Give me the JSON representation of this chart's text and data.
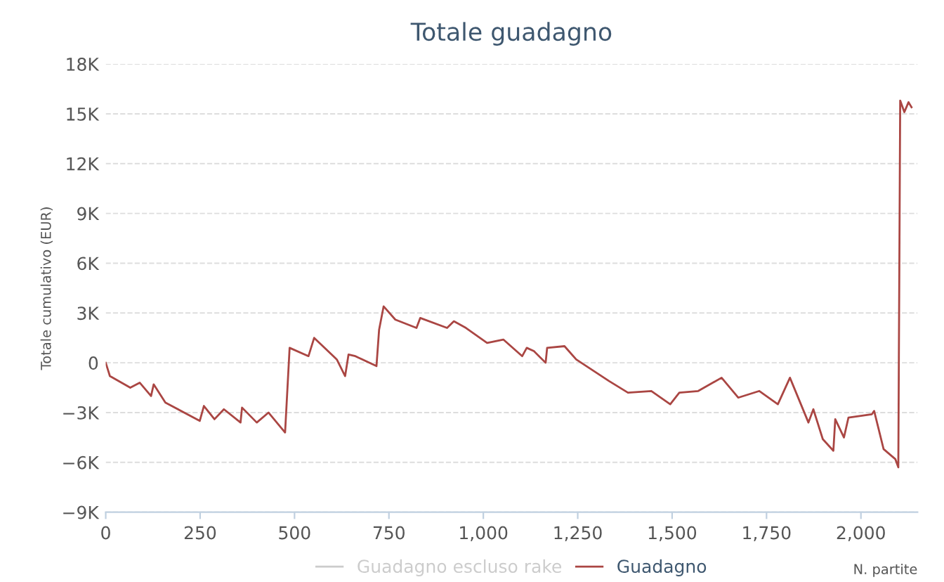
{
  "chart_data": {
    "type": "line",
    "title": "Totale guadagno",
    "xlabel": "N. partite",
    "ylabel": "Totale cumulativo (EUR)",
    "xlim": [
      0,
      2150
    ],
    "xticks": [
      0,
      250,
      500,
      750,
      {
        "value": 1000,
        "label": "1,000"
      },
      {
        "value": 1250,
        "label": "1,250"
      },
      {
        "value": 1500,
        "label": "1,500"
      },
      {
        "value": 1750,
        "label": "1,750"
      },
      {
        "value": 2000,
        "label": "2,000"
      }
    ],
    "ylim": [
      -9000,
      18000
    ],
    "yticks": [
      {
        "value": -9000,
        "label": "−9K"
      },
      {
        "value": -6000,
        "label": "−6K"
      },
      {
        "value": -3000,
        "label": "−3K"
      },
      0,
      {
        "value": 3000,
        "label": "3K"
      },
      {
        "value": 6000,
        "label": "6K"
      },
      {
        "value": 9000,
        "label": "9K"
      },
      {
        "value": 12000,
        "label": "12K"
      },
      {
        "value": 15000,
        "label": "15K"
      },
      {
        "value": 18000,
        "label": "18K"
      }
    ],
    "grid": "y",
    "legend": "bottom",
    "marker": "none",
    "line_style": "solid",
    "series": [
      {
        "name": "Guadagno escluso rake",
        "color": "#cccccc"
      },
      {
        "name": "Guadagno",
        "color": "#aa4643",
        "x": [
          0,
          11,
          65,
          90,
          120,
          127,
          158,
          249,
          260,
          288,
          313,
          357,
          361,
          400,
          431,
          475,
          487,
          537,
          552,
          612,
          634,
          643,
          661,
          717,
          724,
          736,
          767,
          823,
          833,
          904,
          922,
          954,
          1010,
          1053,
          1103,
          1115,
          1134,
          1165,
          1169,
          1215,
          1246,
          1333,
          1383,
          1445,
          1495,
          1519,
          1569,
          1631,
          1675,
          1731,
          1780,
          1812,
          1861,
          1874,
          1899,
          1927,
          1932,
          1955,
          1967,
          2029,
          2035,
          2060,
          2091,
          2099,
          2104,
          2115,
          2126,
          2134
        ],
        "values": [
          0,
          -800,
          -1500,
          -1200,
          -2000,
          -1300,
          -2400,
          -3500,
          -2600,
          -3400,
          -2800,
          -3600,
          -2700,
          -3600,
          -3000,
          -4200,
          900,
          400,
          1500,
          200,
          -800,
          500,
          400,
          -200,
          2000,
          3400,
          2600,
          2100,
          2700,
          2100,
          2500,
          2100,
          1200,
          1400,
          400,
          900,
          700,
          0,
          900,
          1000,
          200,
          -1100,
          -1800,
          -1700,
          -2500,
          -1800,
          -1700,
          -900,
          -2100,
          -1700,
          -2500,
          -900,
          -3600,
          -2800,
          -4600,
          -5300,
          -3400,
          -4500,
          -3300,
          -3100,
          -2900,
          -5200,
          -5800,
          -6300,
          15800,
          15100,
          15700,
          15400
        ]
      }
    ]
  }
}
